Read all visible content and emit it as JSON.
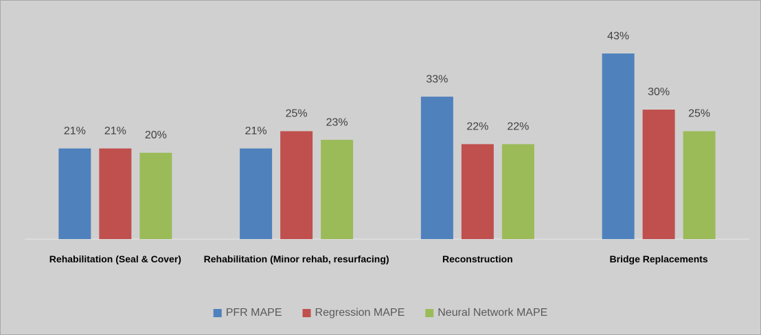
{
  "chart_data": {
    "type": "bar",
    "categories": [
      "Rehabilitation (Seal & Cover)",
      "Rehabilitation (Minor rehab, resurfacing)",
      "Reconstruction",
      "Bridge Replacements"
    ],
    "series": [
      {
        "name": "PFR MAPE",
        "color": "#4f81bd",
        "values": [
          21,
          21,
          33,
          43
        ],
        "value_labels": [
          "21%",
          "21%",
          "33%",
          "43%"
        ]
      },
      {
        "name": "Regression MAPE",
        "color": "#c0504d",
        "values": [
          21,
          25,
          22,
          30
        ],
        "value_labels": [
          "21%",
          "25%",
          "22%",
          "30%"
        ]
      },
      {
        "name": "Neural Network MAPE",
        "color": "#9bbb59",
        "values": [
          20,
          23,
          22,
          25
        ],
        "value_labels": [
          "20%",
          "23%",
          "22%",
          "25%"
        ]
      }
    ],
    "ylim": [
      0,
      50
    ],
    "legend": "bottom"
  }
}
